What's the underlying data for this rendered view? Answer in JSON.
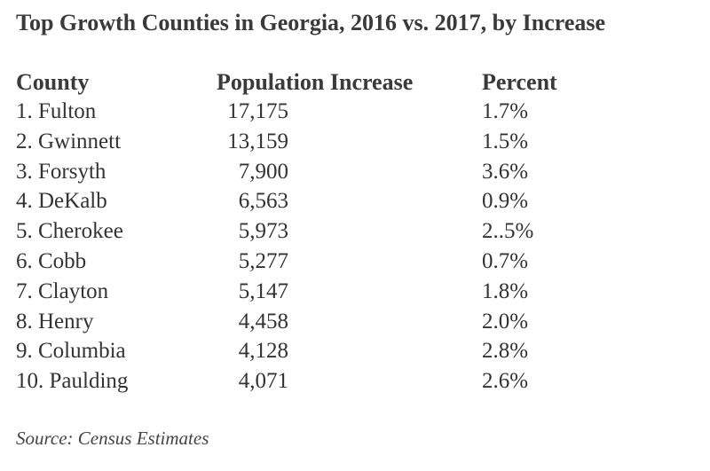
{
  "title": "Top Growth Counties in Georgia, 2016 vs. 2017, by Increase",
  "table": {
    "headers": {
      "county": "County",
      "increase": "Population Increase",
      "percent": "Percent"
    },
    "rows": [
      {
        "county": "1.  Fulton",
        "increase": "17,175",
        "percent": "1.7%"
      },
      {
        "county": "2.  Gwinnett",
        "increase": "13,159",
        "percent": "1.5%"
      },
      {
        "county": "3.  Forsyth",
        "increase": "7,900",
        "percent": "3.6%"
      },
      {
        "county": "4.  DeKalb",
        "increase": "6,563",
        "percent": "0.9%"
      },
      {
        "county": "5.  Cherokee",
        "increase": "5,973",
        "percent": "2..5%"
      },
      {
        "county": "6.  Cobb",
        "increase": "5,277",
        "percent": "0.7%"
      },
      {
        "county": "7.  Clayton",
        "increase": "5,147",
        "percent": "1.8%"
      },
      {
        "county": "8.  Henry",
        "increase": "4,458",
        "percent": "2.0%"
      },
      {
        "county": "9.  Columbia",
        "increase": "4,128",
        "percent": "2.8%"
      },
      {
        "county": "10. Paulding",
        "increase": "4,071",
        "percent": "2.6%"
      }
    ]
  },
  "source": "Source: Census Estimates"
}
